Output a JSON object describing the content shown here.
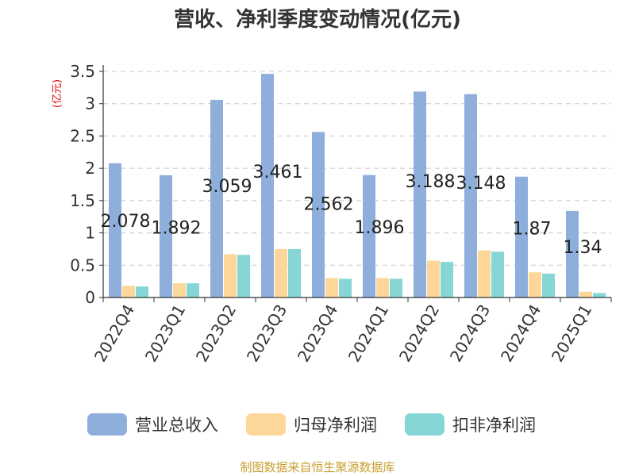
{
  "chart_data": {
    "type": "bar",
    "title": "营收、净利季度变动情况(亿元)",
    "ylabel": "(亿元)",
    "ylim": [
      0,
      3.5
    ],
    "yticks": [
      "0",
      "0.5",
      "1",
      "1.5",
      "2",
      "2.5",
      "3",
      "3.5"
    ],
    "grid": true,
    "legend_position": "bottom",
    "categories": [
      "2022Q4",
      "2023Q1",
      "2023Q2",
      "2023Q3",
      "2023Q4",
      "2024Q1",
      "2024Q2",
      "2024Q3",
      "2024Q4",
      "2025Q1"
    ],
    "series": [
      {
        "name": "营业总收入",
        "color": "#8eaedc",
        "values": [
          2.078,
          1.892,
          3.059,
          3.461,
          2.562,
          1.896,
          3.188,
          3.148,
          1.87,
          1.34
        ],
        "labels": [
          "2.078",
          "1.892",
          "3.059",
          "3.461",
          "2.562",
          "1.896",
          "3.188",
          "3.148",
          "1.87",
          "1.34"
        ]
      },
      {
        "name": "归母净利润",
        "color": "#fdd69a",
        "values": [
          0.18,
          0.22,
          0.67,
          0.75,
          0.3,
          0.3,
          0.57,
          0.73,
          0.39,
          0.09
        ]
      },
      {
        "name": "扣非净利润",
        "color": "#86d6d6",
        "values": [
          0.17,
          0.22,
          0.66,
          0.75,
          0.29,
          0.29,
          0.55,
          0.71,
          0.37,
          0.07
        ]
      }
    ]
  },
  "source": "制图数据来自恒生聚源数据库"
}
